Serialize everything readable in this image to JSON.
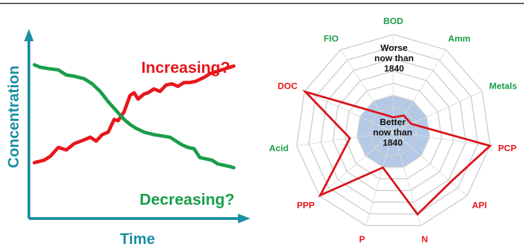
{
  "chart_data": [
    {
      "type": "line",
      "xlabel": "Time",
      "ylabel": "Concentration",
      "grid": false,
      "ticks": false,
      "xlim": [
        0,
        1
      ],
      "ylim": [
        0,
        1
      ],
      "series": [
        {
          "name": "Increasing?",
          "color": "#e8161b",
          "x": [
            0.0,
            0.05,
            0.08,
            0.12,
            0.16,
            0.2,
            0.25,
            0.28,
            0.31,
            0.34,
            0.37,
            0.4,
            0.42,
            0.45,
            0.48,
            0.5,
            0.52,
            0.55,
            0.57,
            0.6,
            0.63,
            0.66,
            0.69,
            0.72,
            0.75,
            0.78,
            0.81,
            0.85,
            0.88,
            0.92,
            0.96,
            1.0
          ],
          "y": [
            0.18,
            0.2,
            0.23,
            0.3,
            0.28,
            0.33,
            0.36,
            0.38,
            0.35,
            0.4,
            0.42,
            0.52,
            0.51,
            0.58,
            0.71,
            0.73,
            0.68,
            0.72,
            0.73,
            0.76,
            0.74,
            0.79,
            0.8,
            0.78,
            0.81,
            0.81,
            0.82,
            0.85,
            0.88,
            0.9,
            0.92,
            0.94
          ]
        },
        {
          "name": "Decreasing?",
          "color": "#1a9e49",
          "x": [
            0.0,
            0.03,
            0.07,
            0.12,
            0.16,
            0.2,
            0.25,
            0.29,
            0.33,
            0.37,
            0.41,
            0.45,
            0.48,
            0.51,
            0.55,
            0.6,
            0.64,
            0.68,
            0.71,
            0.74,
            0.77,
            0.8,
            0.83,
            0.86,
            0.89,
            0.92,
            0.95,
            0.98,
            1.0
          ],
          "y": [
            0.95,
            0.93,
            0.92,
            0.91,
            0.87,
            0.86,
            0.84,
            0.8,
            0.74,
            0.66,
            0.59,
            0.52,
            0.48,
            0.45,
            0.42,
            0.4,
            0.39,
            0.38,
            0.35,
            0.32,
            0.3,
            0.29,
            0.22,
            0.21,
            0.2,
            0.17,
            0.16,
            0.15,
            0.14
          ]
        }
      ]
    },
    {
      "type": "radar",
      "axes": [
        "BOD",
        "Amm",
        "Metals",
        "PCP",
        "API",
        "N",
        "P",
        "PPP",
        "Acid",
        "DOC",
        "FIO"
      ],
      "axis_label_colors": [
        "#1a9e49",
        "#1a9e49",
        "#1a9e49",
        "#e8161b",
        "#e8161b",
        "#e8161b",
        "#e8161b",
        "#e8161b",
        "#1a9e49",
        "#e8161b",
        "#1a9e49"
      ],
      "rings": 8,
      "inner_zone": {
        "text": [
          "Better",
          "now than",
          "1840"
        ],
        "fill": "#b3c9e6"
      },
      "outer_zone_text": [
        "Worse",
        "now than",
        "1840"
      ],
      "series": [
        {
          "color": "#d9161b",
          "values": [
            0.15,
            0.2,
            0.2,
            1.0,
            0.78,
            0.88,
            0.38,
            0.99,
            0.45,
            0.99,
            0.22
          ]
        }
      ]
    }
  ]
}
